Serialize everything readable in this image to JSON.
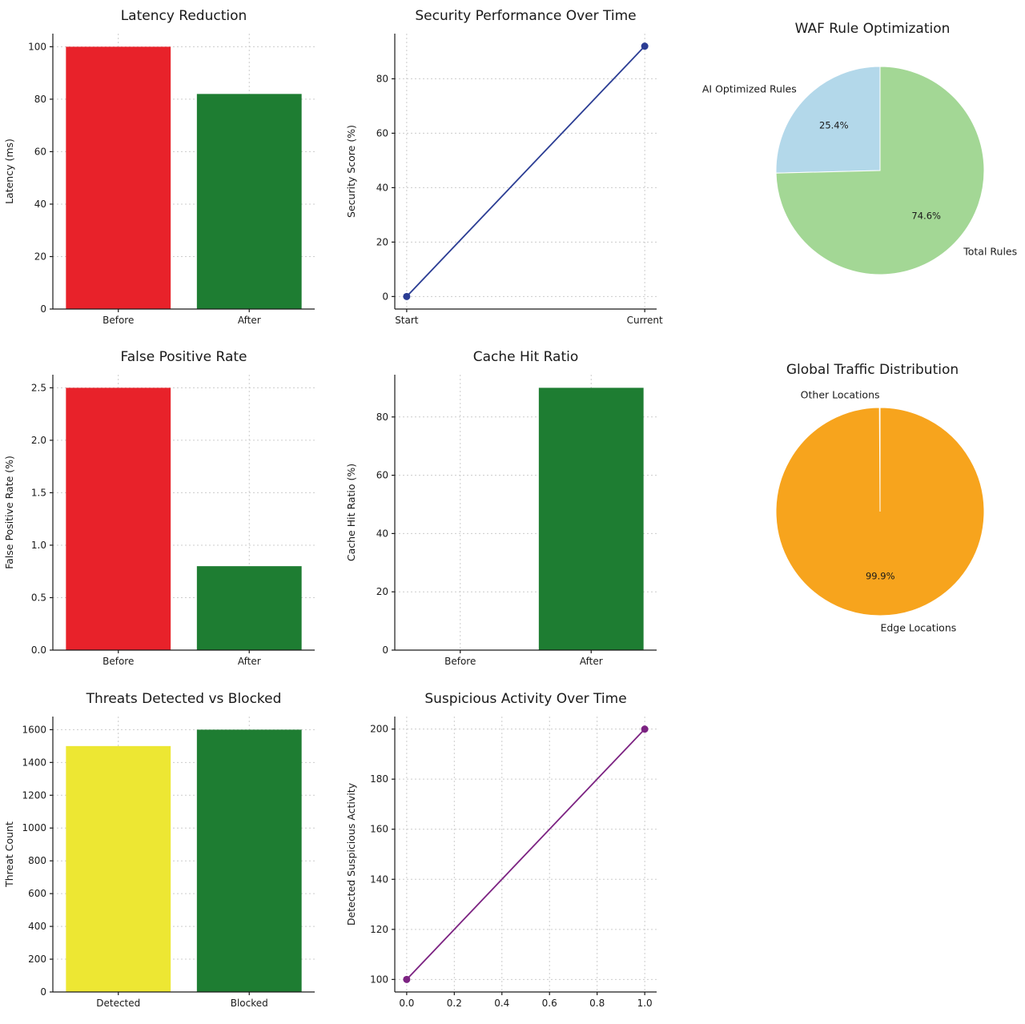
{
  "chart_data": [
    {
      "id": "latency-reduction",
      "type": "bar",
      "title": "Latency Reduction",
      "ylabel": "Latency (ms)",
      "categories": [
        "Before",
        "After"
      ],
      "values": [
        100,
        82
      ],
      "colors": [
        "#e8222a",
        "#1e7d32"
      ],
      "ylim": [
        0,
        105
      ],
      "yticks": [
        0,
        20,
        40,
        60,
        80,
        100
      ],
      "ytick_labels": [
        "0",
        "20",
        "40",
        "60",
        "80",
        "100"
      ]
    },
    {
      "id": "security-performance",
      "type": "line",
      "title": "Security Performance Over Time",
      "ylabel": "Security Score (%)",
      "x": [
        0,
        1
      ],
      "y": [
        0,
        92
      ],
      "color": "#2b3d94",
      "xlim": [
        -0.05,
        1.05
      ],
      "ylim": [
        -4.6,
        96.6
      ],
      "xticks": [
        0,
        1
      ],
      "xtick_labels": [
        "Start",
        "Current"
      ],
      "yticks": [
        0,
        20,
        40,
        60,
        80
      ],
      "ytick_labels": [
        "0",
        "20",
        "40",
        "60",
        "80"
      ]
    },
    {
      "id": "waf-rule-optimization",
      "type": "pie",
      "title": "WAF Rule Optimization",
      "start_angle": 90,
      "slices": [
        {
          "label": "AI Optimized Rules",
          "value": 25.4,
          "pct_label": "25.4%",
          "color": "#b3d8ea"
        },
        {
          "label": "Total Rules",
          "value": 74.6,
          "pct_label": "74.6%",
          "color": "#a3d795"
        }
      ]
    },
    {
      "id": "false-positive-rate",
      "type": "bar",
      "title": "False Positive Rate",
      "ylabel": "False Positive Rate (%)",
      "categories": [
        "Before",
        "After"
      ],
      "values": [
        2.5,
        0.8
      ],
      "colors": [
        "#e8222a",
        "#1e7d32"
      ],
      "ylim": [
        0,
        2.625
      ],
      "yticks": [
        0,
        0.5,
        1.0,
        1.5,
        2.0,
        2.5
      ],
      "ytick_labels": [
        "0.0",
        "0.5",
        "1.0",
        "1.5",
        "2.0",
        "2.5"
      ]
    },
    {
      "id": "cache-hit-ratio",
      "type": "bar",
      "title": "Cache Hit Ratio",
      "ylabel": "Cache Hit Ratio (%)",
      "categories": [
        "Before",
        "After"
      ],
      "values": [
        0,
        90
      ],
      "colors": [
        "#e8222a",
        "#1e7d32"
      ],
      "ylim": [
        0,
        94.5
      ],
      "yticks": [
        0,
        20,
        40,
        60,
        80
      ],
      "ytick_labels": [
        "0",
        "20",
        "40",
        "60",
        "80"
      ]
    },
    {
      "id": "global-traffic-distribution",
      "type": "pie",
      "title": "Global Traffic Distribution",
      "start_angle": 90,
      "slices": [
        {
          "label": "Other Locations",
          "value": 0.1,
          "pct_label": "0.1%",
          "color": "#ffd966"
        },
        {
          "label": "Edge Locations",
          "value": 99.9,
          "pct_label": "99.9%",
          "color": "#f7a41d"
        }
      ]
    },
    {
      "id": "threats-detected-vs-blocked",
      "type": "bar",
      "title": "Threats Detected vs Blocked",
      "ylabel": "Threat Count",
      "categories": [
        "Detected",
        "Blocked"
      ],
      "values": [
        1500,
        1600
      ],
      "colors": [
        "#ede733",
        "#1e7d32"
      ],
      "ylim": [
        0,
        1680
      ],
      "yticks": [
        0,
        200,
        400,
        600,
        800,
        1000,
        1200,
        1400,
        1600
      ],
      "ytick_labels": [
        "0",
        "200",
        "400",
        "600",
        "800",
        "1000",
        "1200",
        "1400",
        "1600"
      ]
    },
    {
      "id": "suspicious-activity",
      "type": "line",
      "title": "Suspicious Activity Over Time",
      "ylabel": "Detected Suspicious Activity",
      "x": [
        0,
        1
      ],
      "y": [
        100,
        200
      ],
      "color": "#7c2382",
      "xlim": [
        -0.05,
        1.05
      ],
      "ylim": [
        95,
        205
      ],
      "xticks": [
        0,
        0.2,
        0.4,
        0.6,
        0.8,
        1.0
      ],
      "xtick_labels": [
        "0.0",
        "0.2",
        "0.4",
        "0.6",
        "0.8",
        "1.0"
      ],
      "yticks": [
        100,
        120,
        140,
        160,
        180,
        200
      ],
      "ytick_labels": [
        "100",
        "120",
        "140",
        "160",
        "180",
        "200"
      ]
    }
  ]
}
